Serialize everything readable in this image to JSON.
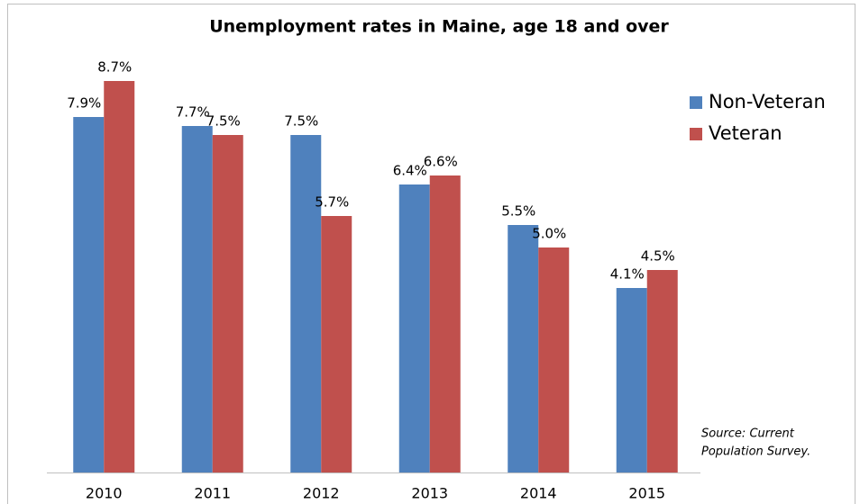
{
  "chart_data": {
    "type": "bar",
    "title": "Unemployment rates in Maine, age 18 and over",
    "categories": [
      "2010",
      "2011",
      "2012",
      "2013",
      "2014",
      "2015"
    ],
    "series": [
      {
        "name": "Non-Veteran",
        "color": "#4f81bd",
        "values": [
          7.9,
          7.7,
          7.5,
          6.4,
          5.5,
          4.1
        ],
        "value_labels": [
          "7.9%",
          "7.7%",
          "7.5%",
          "6.4%",
          "5.5%",
          "4.1%"
        ]
      },
      {
        "name": "Veteran",
        "color": "#c0504d",
        "values": [
          8.7,
          7.5,
          5.7,
          6.6,
          5.0,
          4.5
        ],
        "value_labels": [
          "8.7%",
          "7.5%",
          "5.7%",
          "6.6%",
          "5.0%",
          "4.5%"
        ]
      }
    ],
    "ylim": [
      0,
      10
    ],
    "legend": "right",
    "annotations": [
      "Source: Current",
      "Population Survey."
    ]
  }
}
